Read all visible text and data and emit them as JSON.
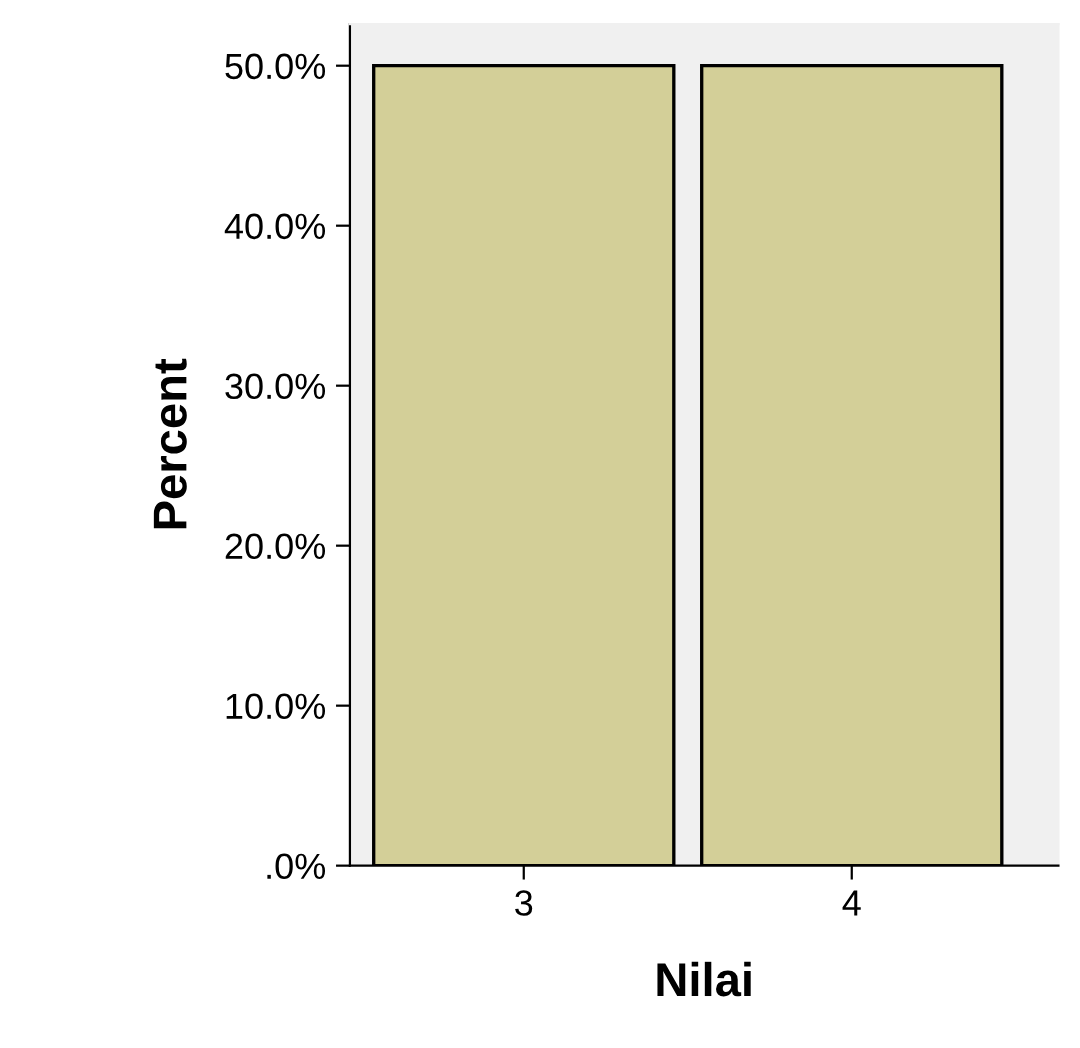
{
  "chart_data": {
    "type": "bar",
    "xlabel": "Nilai",
    "ylabel": "Percent",
    "categories": [
      "3",
      "4"
    ],
    "values": [
      50.0,
      50.0
    ],
    "color": "#d3cf98",
    "ylim": [
      0,
      52.6
    ],
    "yticks": [
      {
        "value": 0,
        "label": ".0%"
      },
      {
        "value": 10,
        "label": "10.0%"
      },
      {
        "value": 20,
        "label": "20.0%"
      },
      {
        "value": 30,
        "label": "30.0%"
      },
      {
        "value": 40,
        "label": "40.0%"
      },
      {
        "value": 50,
        "label": "50.0%"
      }
    ],
    "grid": false
  }
}
